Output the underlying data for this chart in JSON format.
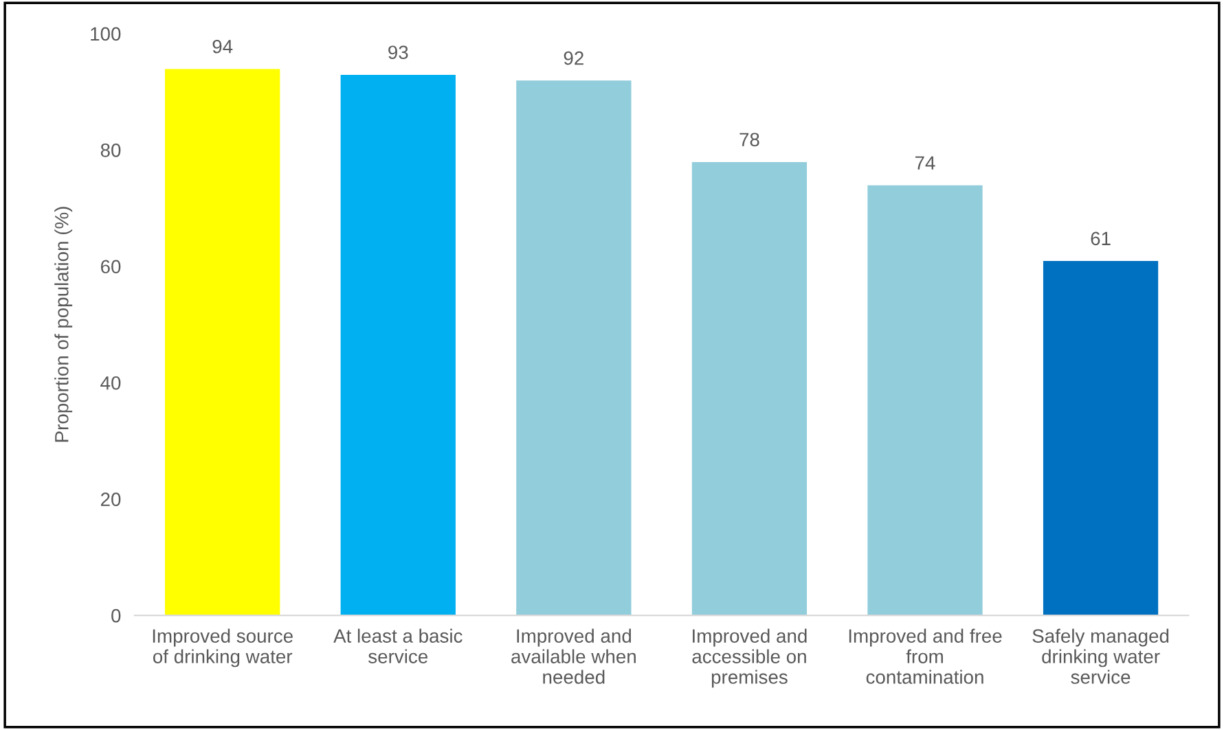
{
  "chart_data": {
    "type": "bar",
    "ylabel": "Proportion of population (%)",
    "categories": [
      "Improved source\nof drinking water",
      "At least a basic\nservice",
      "Improved and\navailable when\nneeded",
      "Improved and\naccessible on\npremises",
      "Improved and free\nfrom\ncontamination",
      "Safely managed\ndrinking water\nservice"
    ],
    "values": [
      94,
      93,
      92,
      78,
      74,
      61
    ],
    "colors": [
      "#ffff00",
      "#00b0f0",
      "#92cddc",
      "#92cddc",
      "#92cddc",
      "#0070c0"
    ],
    "ylim": [
      0,
      100
    ],
    "yticks": [
      0,
      20,
      40,
      60,
      80,
      100
    ],
    "grid": false,
    "data_labels": true
  }
}
